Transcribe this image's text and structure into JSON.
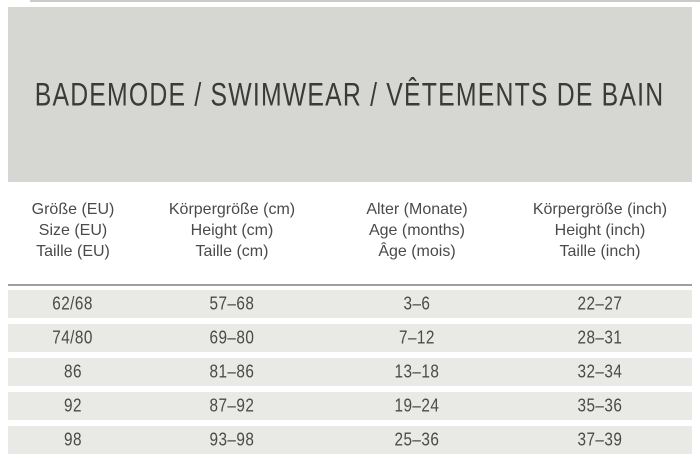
{
  "banner": {
    "title": "BADEMODE / SWIMWEAR / VÊTEMENTS DE BAIN"
  },
  "table": {
    "headers": [
      {
        "de": "Größe (EU)",
        "en": "Size (EU)",
        "fr": "Taille (EU)"
      },
      {
        "de": "Körpergröße (cm)",
        "en": "Height (cm)",
        "fr": "Taille (cm)"
      },
      {
        "de": "Alter (Monate)",
        "en": "Age (months)",
        "fr": "Âge (mois)"
      },
      {
        "de": "Körpergröße (inch)",
        "en": "Height (inch)",
        "fr": "Taille (inch)"
      }
    ],
    "rows": [
      [
        "62/68",
        "57–68",
        "3–6",
        "22–27"
      ],
      [
        "74/80",
        "69–80",
        "7–12",
        "28–31"
      ],
      [
        "86",
        "81–86",
        "13–18",
        "32–34"
      ],
      [
        "92",
        "87–92",
        "19–24",
        "35–36"
      ],
      [
        "98",
        "93–98",
        "25–36",
        "37–39"
      ]
    ]
  },
  "colors": {
    "banner_bg": "#d6d6d2",
    "row_bg": "#e9e9e5",
    "rule": "#9f9f9b",
    "text": "#4a4a48",
    "title_text": "#3a3a38"
  }
}
